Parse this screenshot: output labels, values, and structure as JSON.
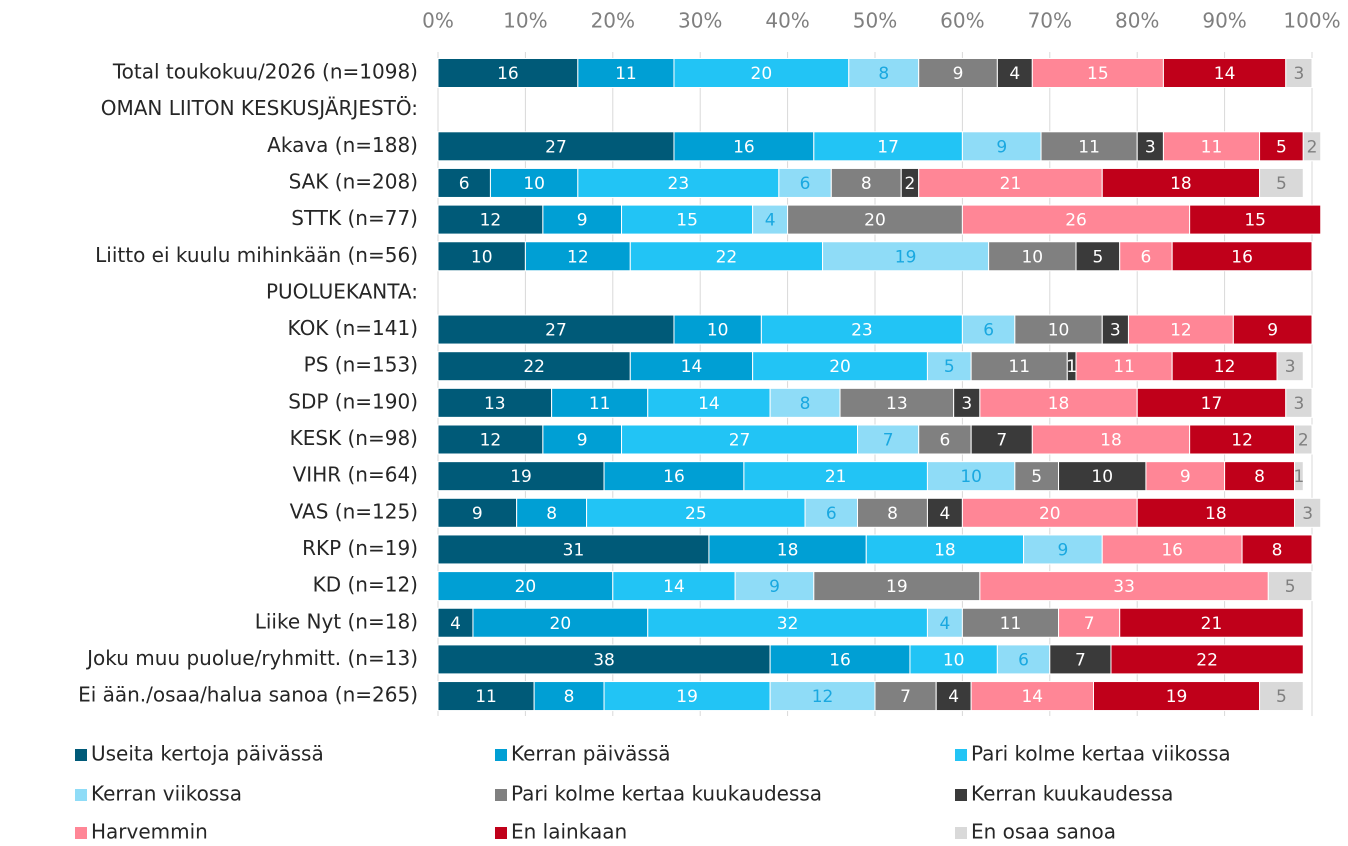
{
  "chart_data": {
    "type": "stacked_barh",
    "categories": [
      "Total toukokuu/2026 (n=1098)",
      "OMAN LIITON KESKUSJÄRJESTÖ:",
      "Akava (n=188)",
      "SAK (n=208)",
      "STTK (n=77)",
      "Liitto ei kuulu mihinkään (n=56)",
      "PUOLUEKANTA:",
      "KOK (n=141)",
      "PS (n=153)",
      "SDP (n=190)",
      "KESK (n=98)",
      "VIHR (n=64)",
      "VAS (n=125)",
      "RKP (n=19)",
      "KD (n=12)",
      "Liike Nyt (n=18)",
      "Joku muu puolue/ryhmitt. (n=13)",
      "Ei ään./osaa/halua sanoa (n=265)"
    ],
    "series": [
      {
        "name": "Useita kertoja päivässä",
        "color": "#005a78",
        "values": [
          16,
          null,
          27,
          6,
          12,
          10,
          null,
          27,
          22,
          13,
          12,
          19,
          9,
          31,
          null,
          4,
          38,
          11
        ]
      },
      {
        "name": "Kerran päivässä",
        "color": "#009fd4",
        "values": [
          11,
          null,
          16,
          10,
          9,
          12,
          null,
          10,
          14,
          11,
          9,
          16,
          8,
          18,
          20,
          20,
          16,
          8
        ]
      },
      {
        "name": "Pari kolme kertaa viikossa",
        "color": "#22c4f5",
        "values": [
          20,
          null,
          17,
          23,
          15,
          22,
          null,
          23,
          20,
          14,
          27,
          21,
          25,
          18,
          14,
          32,
          10,
          19
        ]
      },
      {
        "name": "Kerran viikossa",
        "color": "#8fdcf7",
        "values": [
          8,
          null,
          9,
          6,
          4,
          19,
          null,
          6,
          5,
          8,
          7,
          10,
          6,
          9,
          9,
          4,
          6,
          12
        ]
      },
      {
        "name": "Pari kolme kertaa kuukaudessa",
        "color": "#808080",
        "values": [
          9,
          null,
          11,
          8,
          20,
          10,
          null,
          10,
          11,
          13,
          6,
          5,
          8,
          null,
          19,
          11,
          null,
          7
        ]
      },
      {
        "name": "Kerran kuukaudessa",
        "color": "#3a3a3a",
        "values": [
          4,
          null,
          3,
          2,
          null,
          5,
          null,
          3,
          1,
          3,
          7,
          10,
          4,
          null,
          null,
          null,
          7,
          4
        ]
      },
      {
        "name": "Harvemmin",
        "color": "#ff8696",
        "values": [
          15,
          null,
          11,
          21,
          26,
          6,
          null,
          12,
          11,
          18,
          18,
          9,
          20,
          16,
          33,
          7,
          null,
          14
        ]
      },
      {
        "name": "En lainkaan",
        "color": "#c0001a",
        "values": [
          14,
          null,
          5,
          18,
          15,
          16,
          null,
          9,
          12,
          17,
          12,
          8,
          18,
          8,
          null,
          21,
          22,
          19
        ]
      },
      {
        "name": "En osaa sanoa",
        "color": "#d9d9d9",
        "values": [
          3,
          null,
          2,
          5,
          null,
          null,
          null,
          null,
          3,
          3,
          2,
          1,
          3,
          null,
          5,
          null,
          null,
          5
        ]
      }
    ],
    "xlim": [
      0,
      100
    ],
    "xticks": [
      {
        "value": 0,
        "label": "0%"
      },
      {
        "value": 10,
        "label": "10%"
      },
      {
        "value": 20,
        "label": "20%"
      },
      {
        "value": 30,
        "label": "30%"
      },
      {
        "value": 40,
        "label": "40%"
      },
      {
        "value": 50,
        "label": "50%"
      },
      {
        "value": 60,
        "label": "60%"
      },
      {
        "value": 70,
        "label": "70%"
      },
      {
        "value": 80,
        "label": "80%"
      },
      {
        "value": 90,
        "label": "90%"
      },
      {
        "value": 100,
        "label": "100%"
      }
    ],
    "grid": true,
    "legend": "bottom"
  }
}
